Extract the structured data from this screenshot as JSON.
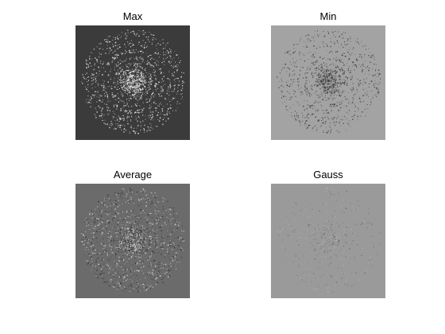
{
  "panels": [
    {
      "id": "max",
      "title": "Max",
      "background": "#3b3b3b",
      "texture": "bright"
    },
    {
      "id": "min",
      "title": "Min",
      "background": "#a3a3a3",
      "texture": "dark"
    },
    {
      "id": "average",
      "title": "Average",
      "background": "#6b6b6b",
      "texture": "mixed"
    },
    {
      "id": "gauss",
      "title": "Gauss",
      "background": "#9a9a9a",
      "texture": "faint"
    }
  ]
}
